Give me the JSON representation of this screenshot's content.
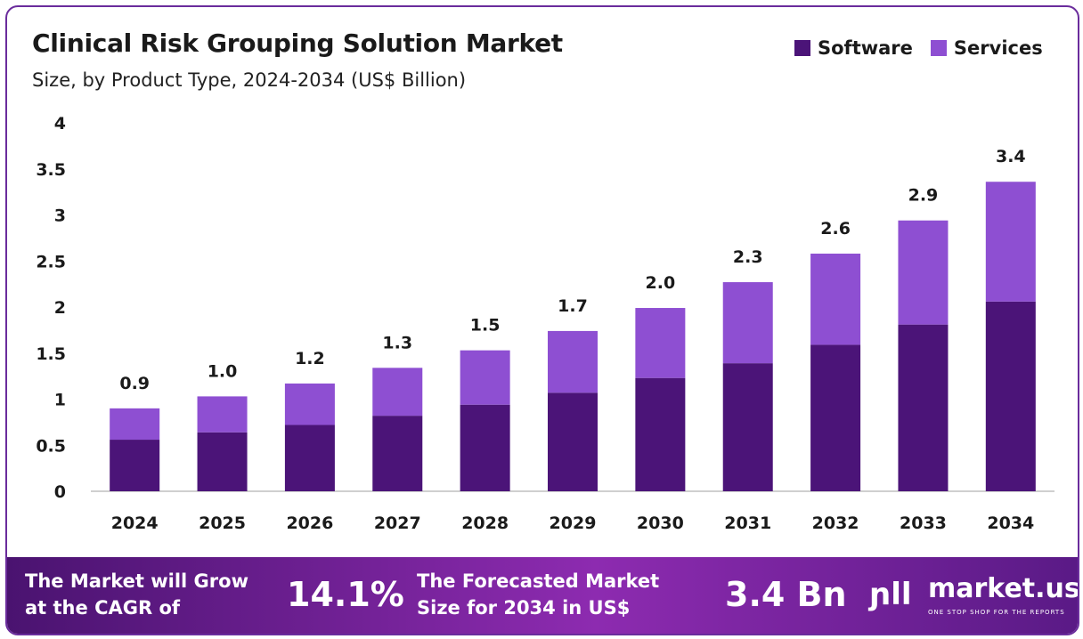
{
  "chart_data": {
    "type": "bar",
    "stacked": true,
    "title": "Clinical Risk Grouping Solution Market",
    "subtitle": "Size, by Product Type, 2024-2034 (US$ Billion)",
    "categories": [
      "2024",
      "2025",
      "2026",
      "2027",
      "2028",
      "2029",
      "2030",
      "2031",
      "2032",
      "2033",
      "2034"
    ],
    "series": [
      {
        "name": "Software",
        "color": "#4b1478",
        "values": [
          0.56,
          0.64,
          0.72,
          0.82,
          0.94,
          1.07,
          1.23,
          1.39,
          1.59,
          1.81,
          2.06
        ]
      },
      {
        "name": "Services",
        "color": "#8e4fd2",
        "values": [
          0.34,
          0.39,
          0.45,
          0.52,
          0.59,
          0.67,
          0.76,
          0.88,
          0.99,
          1.13,
          1.3
        ]
      }
    ],
    "totals_labels": [
      "0.9",
      "1.0",
      "1.2",
      "1.3",
      "1.5",
      "1.7",
      "2.0",
      "2.3",
      "2.6",
      "2.9",
      "3.4"
    ],
    "ylim": [
      0,
      4
    ],
    "yticks": [
      "0",
      "0.5",
      "1",
      "1.5",
      "2",
      "2.5",
      "3",
      "3.5",
      "4"
    ],
    "grid": false,
    "legend_position": "top-right"
  },
  "banner": {
    "cagr_text_line1": "The Market will Grow",
    "cagr_text_line2": "at the CAGR of",
    "cagr_value": "14.1%",
    "forecast_text_line1": "The Forecasted Market",
    "forecast_text_line2": "Size for 2034 in US$",
    "forecast_value": "3.4 Bn",
    "logo_name": "market.us",
    "logo_tagline": "ONE STOP SHOP FOR THE REPORTS"
  }
}
